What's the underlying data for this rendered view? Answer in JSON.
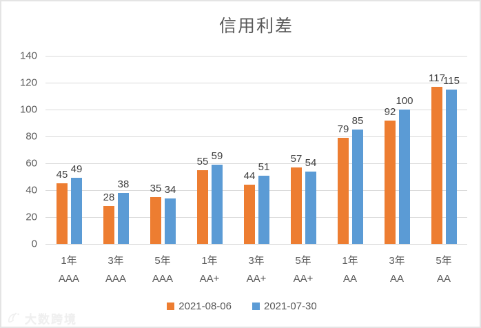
{
  "title": "信用利差",
  "legend": [
    {
      "label": "2021-08-06",
      "color": "#ED7D31"
    },
    {
      "label": "2021-07-30",
      "color": "#5B9BD5"
    }
  ],
  "watermark": {
    "text": "大数跨境",
    "logo": "swoosh-bird-logo-icon"
  },
  "colors": {
    "series1": "#ED7D31",
    "series2": "#5B9BD5",
    "gridline": "#D9D9D9",
    "axis_text": "#595959",
    "data_label_text": "#404040",
    "frame_border": "#E4E4E4"
  },
  "chart_data": {
    "type": "bar",
    "title": "信用利差",
    "categories": [
      [
        "1年",
        "AAA"
      ],
      [
        "3年",
        "AAA"
      ],
      [
        "5年",
        "AAA"
      ],
      [
        "1年",
        "AA+"
      ],
      [
        "3年",
        "AA+"
      ],
      [
        "5年",
        "AA+"
      ],
      [
        "1年",
        "AA"
      ],
      [
        "3年",
        "AA"
      ],
      [
        "5年",
        "AA"
      ]
    ],
    "series": [
      {
        "name": "2021-08-06",
        "color": "#ED7D31",
        "values": [
          45,
          28,
          35,
          55,
          44,
          57,
          79,
          92,
          117
        ]
      },
      {
        "name": "2021-07-30",
        "color": "#5B9BD5",
        "values": [
          49,
          38,
          34,
          59,
          51,
          54,
          85,
          100,
          115
        ]
      }
    ],
    "xlabel": "",
    "ylabel": "",
    "ylim": [
      0,
      140
    ],
    "yticks": [
      0,
      20,
      40,
      60,
      80,
      100,
      120,
      140
    ],
    "grid": true,
    "data_labels": true,
    "legend_position": "bottom"
  }
}
